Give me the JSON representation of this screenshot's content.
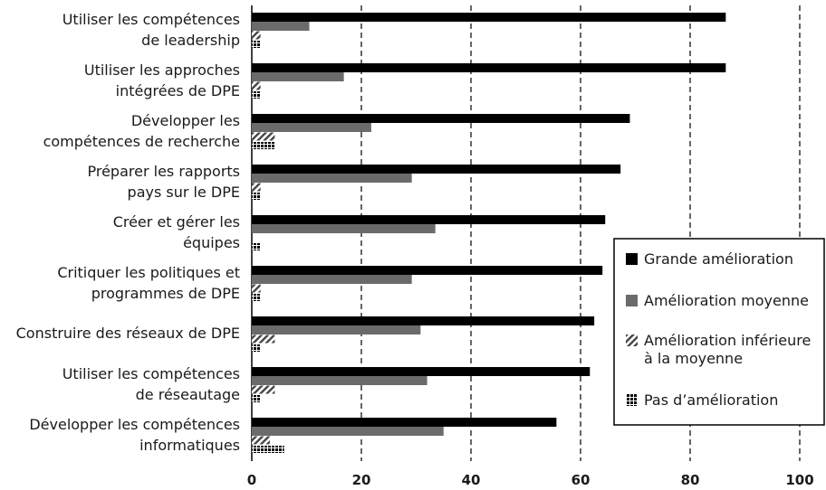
{
  "chart_data": {
    "type": "bar",
    "orientation": "horizontal",
    "categories": [
      [
        "Utiliser les compétences",
        "de leadership"
      ],
      [
        "Utiliser les approches",
        "intégrées de DPE"
      ],
      [
        "Développer les",
        "compétences de recherche"
      ],
      [
        "Préparer les rapports",
        "pays sur le DPE"
      ],
      [
        "Créer et gérer les",
        "équipes"
      ],
      [
        "Critiquer les politiques et",
        "programmes de DPE"
      ],
      [
        "Construire des réseaux de DPE"
      ],
      [
        "Utiliser les compétences",
        "de réseautage"
      ],
      [
        "Développer les compétences",
        "informatiques"
      ]
    ],
    "series": [
      {
        "name": "Grande amélioration",
        "color": "#000000",
        "pattern": "solid",
        "values": [
          86.5,
          86.5,
          69,
          67.3,
          64.5,
          64,
          62.5,
          61.7,
          55.6
        ]
      },
      {
        "name": "Amélioration moyenne",
        "color": "#6b6b6b",
        "pattern": "solid",
        "values": [
          10.5,
          16.8,
          21.8,
          29.2,
          33.5,
          29.2,
          30.8,
          32,
          35
        ]
      },
      {
        "name": "Amélioration inférieure à la moyenne",
        "color": "#555555",
        "pattern": "hatch",
        "values": [
          1.6,
          1.6,
          4.2,
          1.6,
          0,
          1.6,
          4.2,
          4.2,
          3.3
        ]
      },
      {
        "name": "Pas d'amélioration",
        "color": "#000000",
        "pattern": "grid",
        "values": [
          1.6,
          1.6,
          4.2,
          1.6,
          1.6,
          1.6,
          1.6,
          1.6,
          5.9
        ]
      }
    ],
    "legend_lines": [
      [
        "Grande amélioration"
      ],
      [
        "Amélioration moyenne"
      ],
      [
        "Amélioration inférieure",
        "à la moyenne"
      ],
      [
        "Pas d’amélioration"
      ]
    ],
    "xlim": [
      0,
      100
    ],
    "xticks": [
      0,
      20,
      40,
      60,
      80,
      100
    ],
    "grid": "vertical dashed",
    "legend_position": "bottom-right"
  }
}
